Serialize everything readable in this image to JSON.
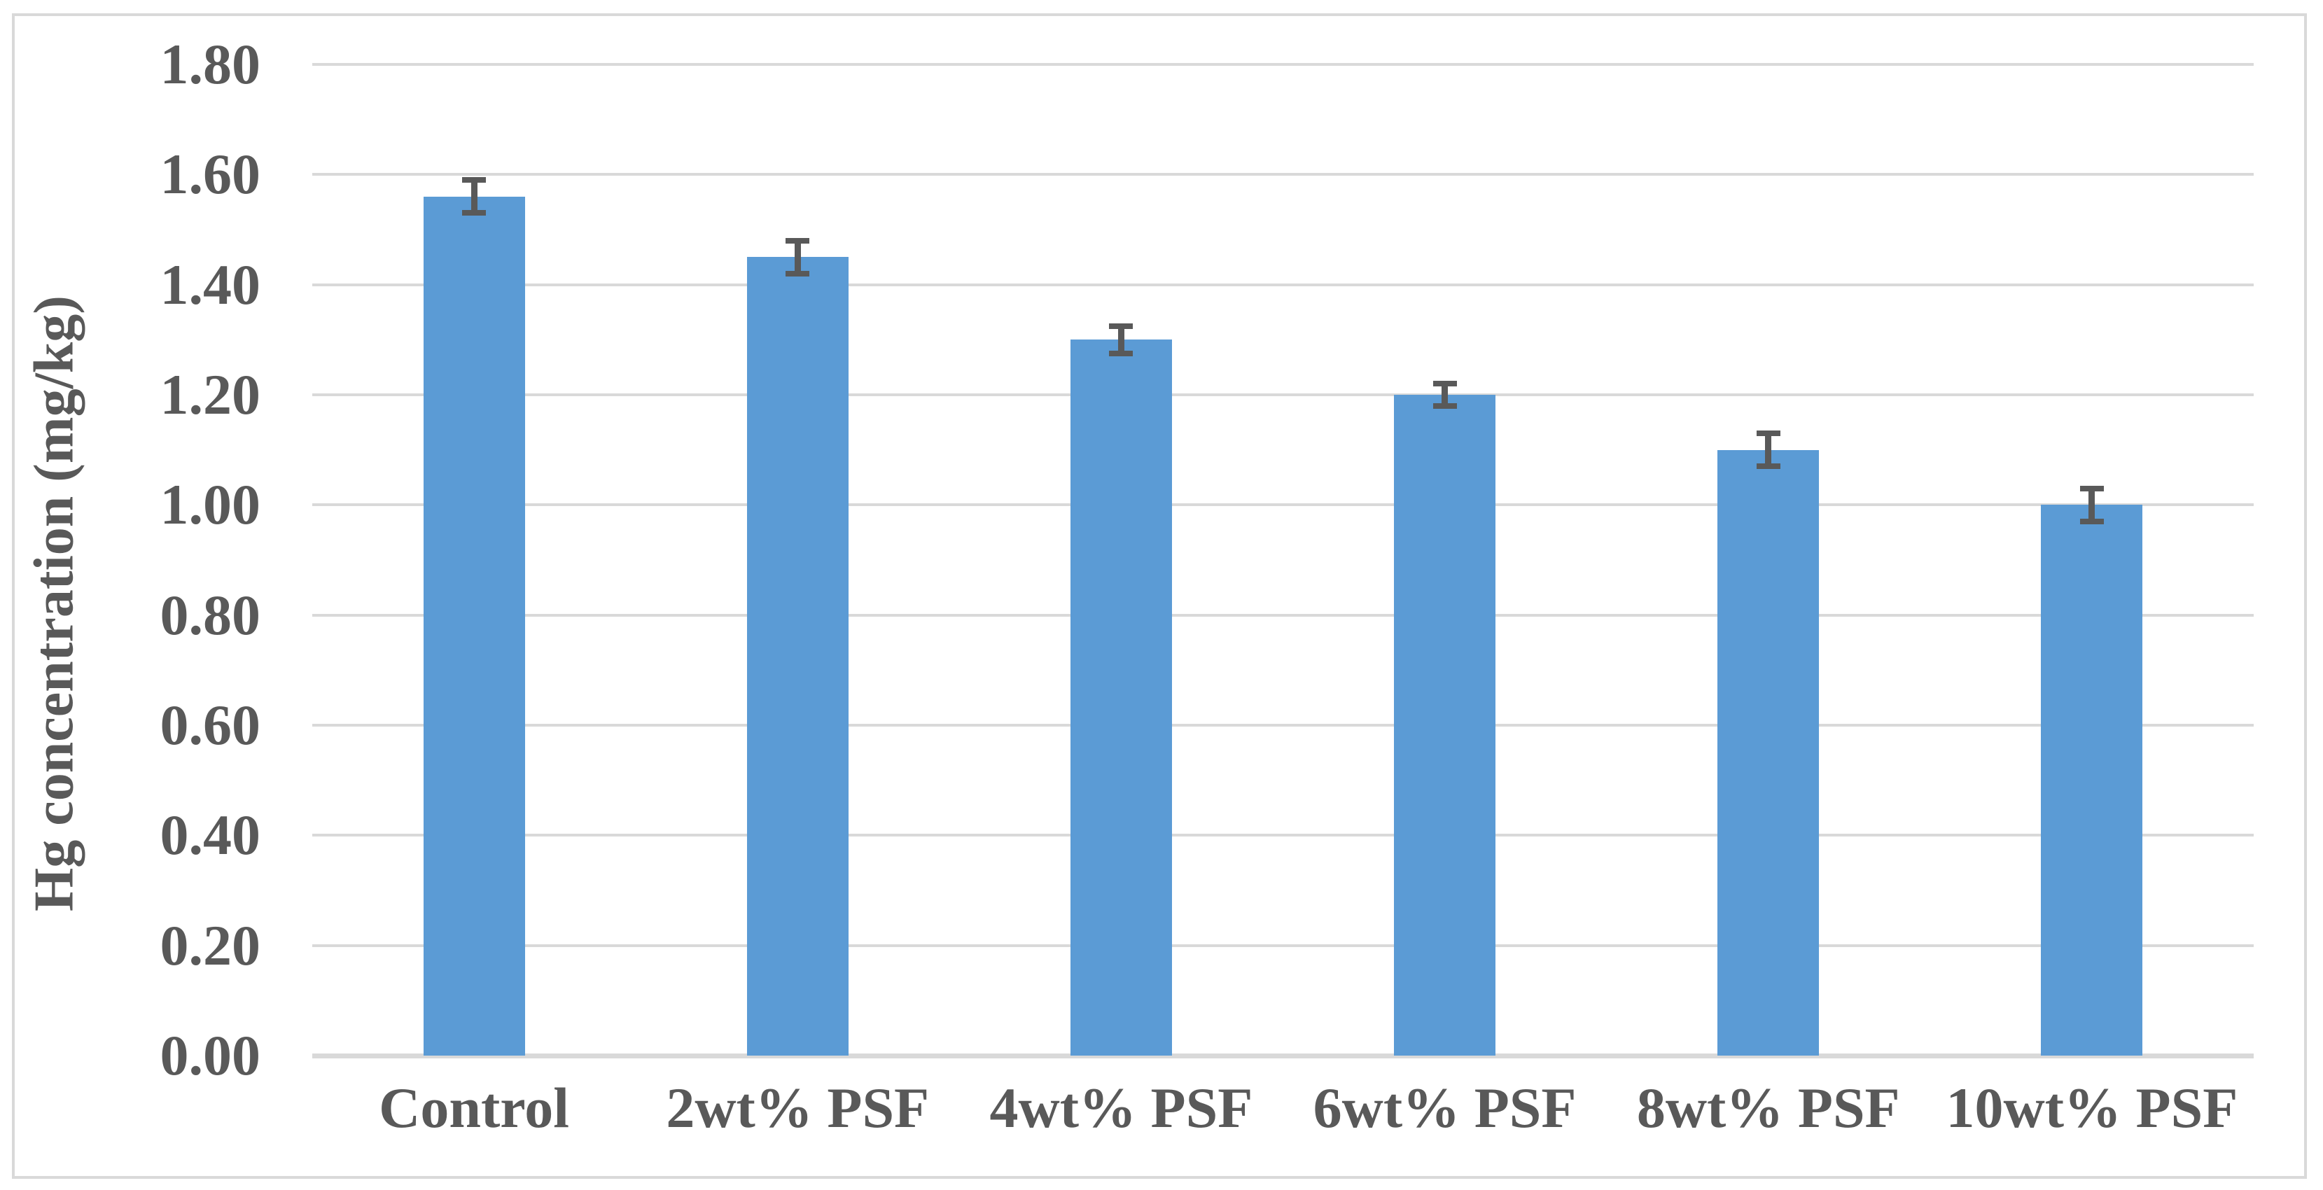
{
  "chart_data": {
    "type": "bar",
    "title": "",
    "categories": [
      "Control",
      "2wt% PSF",
      "4wt% PSF",
      "6wt% PSF",
      "8wt% PSF",
      "10wt% PSF"
    ],
    "values": [
      1.56,
      1.45,
      1.3,
      1.2,
      1.1,
      1.0
    ],
    "error_bars": [
      0.03,
      0.03,
      0.025,
      0.02,
      0.03,
      0.03
    ],
    "xlabel": "",
    "ylabel": "Hg concentration (mg/kg)",
    "ylim": [
      0.0,
      1.8
    ],
    "ytick_step": 0.2,
    "ytick_labels": [
      "0.00",
      "0.20",
      "0.40",
      "0.60",
      "0.80",
      "1.00",
      "1.20",
      "1.40",
      "1.60",
      "1.80"
    ],
    "grid": "horizontal",
    "legend": "none",
    "series_count": 1,
    "colors": {
      "bar": "#5b9bd5",
      "error_bar": "#595959",
      "axis_text": "#595959",
      "gridline": "#d9d9d9",
      "frame_border": "#d9d9d9",
      "background": "#ffffff"
    }
  }
}
